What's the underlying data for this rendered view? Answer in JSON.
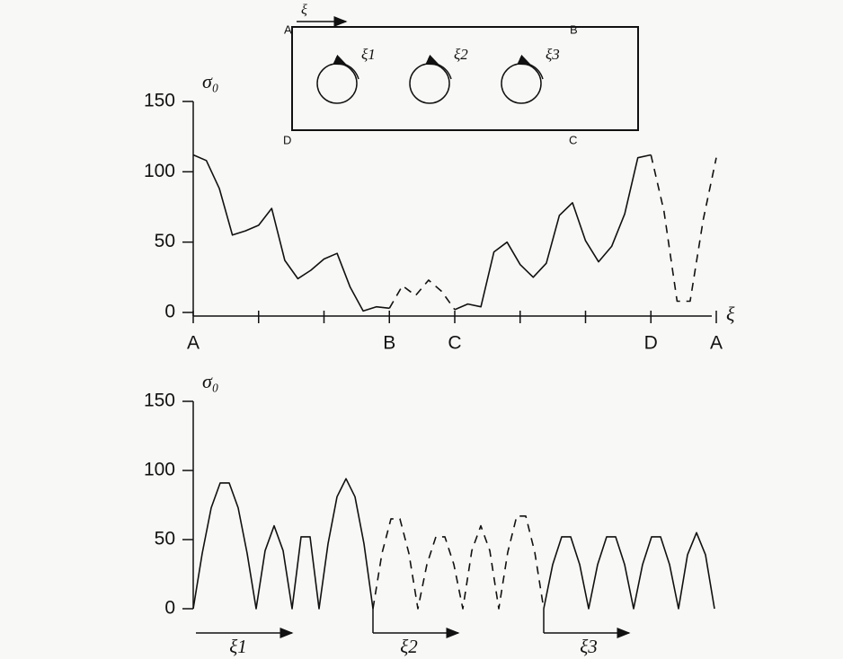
{
  "chart_data": [
    {
      "type": "line",
      "y_label": "σ₀",
      "x_label": "ξ",
      "categories": [
        "A",
        null,
        null,
        null,
        null,
        null,
        null,
        null,
        null,
        null,
        null,
        null,
        null,
        null,
        null,
        "B",
        null,
        null,
        null,
        null,
        "C",
        null,
        null,
        null,
        null,
        null,
        null,
        null,
        null,
        null,
        null,
        null,
        null,
        null,
        null,
        "D",
        null,
        null,
        null,
        null,
        "A"
      ],
      "series": [
        {
          "color": "#111111",
          "style": "solid",
          "values": [
            112,
            108,
            88,
            55,
            58,
            62,
            74,
            37,
            24,
            30,
            38,
            42,
            18,
            1,
            4,
            3,
            null,
            null,
            null,
            null,
            2,
            6,
            4,
            43,
            50,
            34,
            25,
            35,
            69,
            78,
            51,
            36,
            47,
            70,
            110,
            112,
            null,
            null,
            null,
            null,
            null
          ]
        },
        {
          "color": "#111111",
          "style": "dashed",
          "values": [
            null,
            null,
            null,
            null,
            null,
            null,
            null,
            null,
            null,
            null,
            null,
            null,
            null,
            null,
            null,
            3,
            19,
            12,
            23,
            15,
            2,
            null,
            null,
            null,
            null,
            null,
            null,
            null,
            null,
            null,
            null,
            null,
            null,
            null,
            null,
            112,
            72,
            8,
            8,
            66,
            110
          ]
        }
      ],
      "ylim": [
        0,
        150
      ],
      "yticks": [
        0,
        50,
        100,
        150
      ],
      "xtick_step": 5
    },
    {
      "type": "line",
      "y_label": "σ₀",
      "categories": [
        null,
        null,
        null,
        null,
        null,
        "ξ1",
        null,
        null,
        null,
        null,
        null,
        null,
        null,
        null,
        null,
        null,
        null,
        null,
        null,
        null,
        null,
        null,
        null,
        null,
        "ξ2",
        null,
        null,
        null,
        null,
        null,
        null,
        null,
        null,
        null,
        null,
        null,
        null,
        null,
        null,
        null,
        null,
        null,
        null,
        null,
        "ξ3",
        null,
        null,
        null,
        null,
        null,
        null,
        null,
        null,
        null,
        null,
        null,
        null,
        null,
        null
      ],
      "series": [
        {
          "color": "#111111",
          "style": "solid",
          "values": [
            0,
            40,
            73,
            91,
            91,
            73,
            40,
            0,
            42,
            60,
            42,
            0,
            52,
            52,
            0,
            47,
            81,
            94,
            81,
            47,
            0,
            null,
            null,
            null,
            null,
            null,
            null,
            null,
            null,
            null,
            null,
            null,
            null,
            null,
            null,
            null,
            null,
            null,
            null,
            0,
            32,
            52,
            52,
            32,
            0,
            32,
            52,
            52,
            32,
            0,
            32,
            52,
            52,
            32,
            0,
            39,
            55,
            39,
            0
          ]
        },
        {
          "color": "#111111",
          "style": "dashed",
          "values": [
            null,
            null,
            null,
            null,
            null,
            null,
            null,
            null,
            null,
            null,
            null,
            null,
            null,
            null,
            null,
            null,
            null,
            null,
            null,
            null,
            0,
            40,
            65,
            65,
            40,
            0,
            32,
            52,
            52,
            32,
            0,
            42,
            60,
            42,
            0,
            41,
            67,
            67,
            41,
            0,
            null,
            null,
            null,
            null,
            null,
            null,
            null,
            null,
            null,
            null,
            null,
            null,
            null,
            null,
            null,
            null,
            null,
            null,
            null
          ]
        }
      ],
      "ylim": [
        0,
        150
      ],
      "yticks": [
        0,
        50,
        100,
        150
      ]
    }
  ],
  "inset": {
    "axis": "ξ",
    "corners": [
      "A",
      "B",
      "C",
      "D"
    ],
    "rollers": [
      "ξ1",
      "ξ2",
      "ξ3"
    ]
  }
}
